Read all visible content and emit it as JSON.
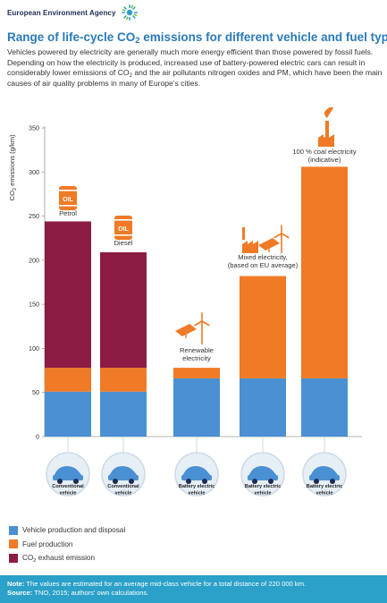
{
  "header": {
    "agency": "European Environment Agency",
    "logo_icon": "eea-sun-logo-icon"
  },
  "title": {
    "pre": "Range of life-cycle CO",
    "sub": "2",
    "post": " emissions for different vehicle and fuel types"
  },
  "intro": {
    "p1": "Vehicles powered by electricity are generally much more energy efficient than those powered by fossil fuels. Depending on how the electricity is produced, increased use of battery-powered electric cars can result in considerably lower emissions of CO",
    "sub": "2",
    "p2": " and the air pollutants nitrogen oxides and PM, which have been the main causes of air quality problems in many of Europe's cities."
  },
  "chart_data": {
    "type": "bar",
    "stacked": true,
    "ylabel_pre": "CO",
    "ylabel_sub": "2",
    "ylabel_post": "  emissions (g/km)",
    "ylim": [
      0,
      350
    ],
    "yticks": [
      0,
      50,
      100,
      150,
      200,
      250,
      300,
      350
    ],
    "categories": [
      {
        "label": [
          "Petrol"
        ],
        "icon": "oil-barrel-icon",
        "vehicle": [
          "Conventional",
          "vehicle"
        ]
      },
      {
        "label": [
          "Diesel"
        ],
        "icon": "oil-barrel-icon",
        "vehicle": [
          "Conventional",
          "vehicle"
        ]
      },
      {
        "label": [
          "Renewable",
          "electricity"
        ],
        "icon": "solar-wind-icon",
        "vehicle": [
          "Battery electric",
          "vehicle"
        ]
      },
      {
        "label": [
          "Mixed electricity,",
          "(based on EU average)"
        ],
        "icon": "mixed-energy-icon",
        "vehicle": [
          "Battery electric",
          "vehicle"
        ]
      },
      {
        "label": [
          "100 % coal electricity",
          "(indicative)"
        ],
        "icon": "coal-factory-icon",
        "vehicle": [
          "Battery electric",
          "vehicle"
        ]
      }
    ],
    "barrel_text": "OIL",
    "series": [
      {
        "name": "Vehicle production and disposal",
        "color": "#4a90d2",
        "values": [
          51,
          51,
          66,
          66,
          66
        ]
      },
      {
        "name": "Fuel production",
        "color": "#f07a25",
        "values": [
          27,
          27,
          12,
          116,
          240
        ]
      },
      {
        "name_pre": "CO",
        "name_sub": "2",
        "name_post": " exhaust emission",
        "color": "#8c1c44",
        "values": [
          166,
          131,
          0,
          0,
          0
        ]
      }
    ]
  },
  "footer": {
    "note_label": "Note:",
    "note": " The values are estimated for an average mid-class vehicle for a total distance of 220 000 km.",
    "source_label": "Source:",
    "source": " TNO, 2015; authors' own calculations."
  }
}
